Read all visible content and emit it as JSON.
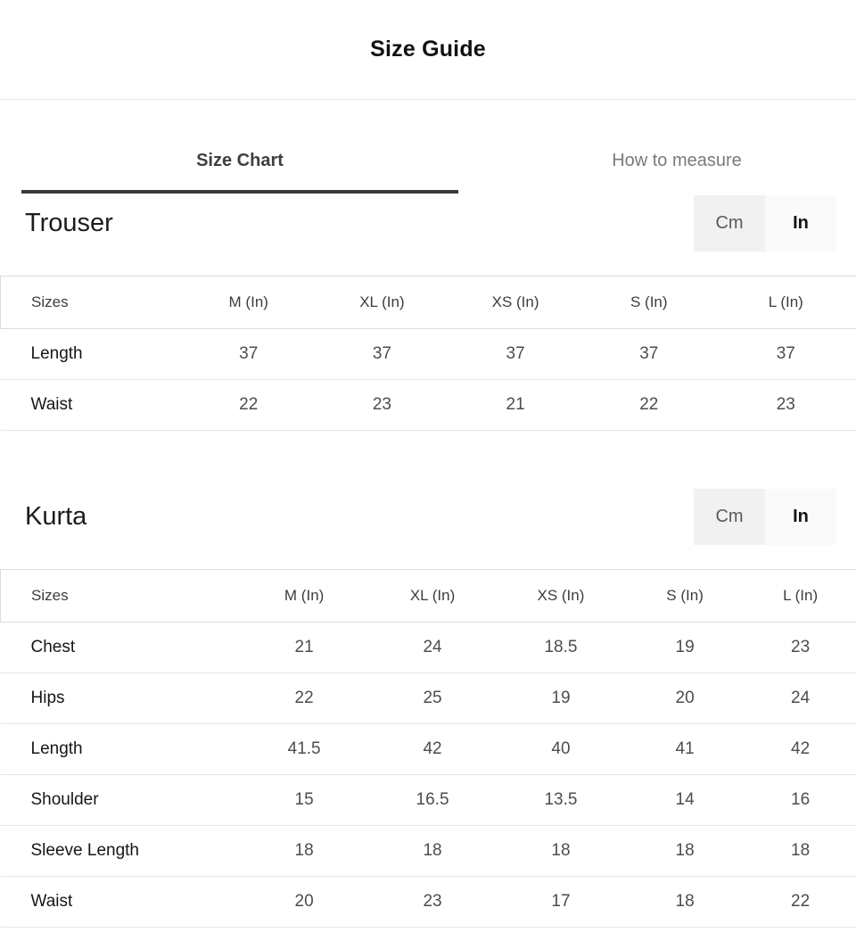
{
  "page": {
    "title": "Size Guide"
  },
  "tabs": {
    "size_chart": "Size Chart",
    "how_to_measure": "How to measure",
    "active_tab": "size_chart"
  },
  "unit_toggle": {
    "cm": "Cm",
    "in": "In"
  },
  "sections": [
    {
      "heading": "Trouser",
      "selected_unit": "in",
      "columns": [
        "Sizes",
        "M (In)",
        "XL (In)",
        "XS (In)",
        "S (In)",
        "L (In)"
      ],
      "rows": [
        {
          "label": "Length",
          "values": [
            "37",
            "37",
            "37",
            "37",
            "37"
          ]
        },
        {
          "label": "Waist",
          "values": [
            "22",
            "23",
            "21",
            "22",
            "23"
          ]
        }
      ]
    },
    {
      "heading": "Kurta",
      "selected_unit": "in",
      "columns": [
        "Sizes",
        "M (In)",
        "XL (In)",
        "XS (In)",
        "S (In)",
        "L (In)"
      ],
      "rows": [
        {
          "label": "Chest",
          "values": [
            "21",
            "24",
            "18.5",
            "19",
            "23"
          ]
        },
        {
          "label": "Hips",
          "values": [
            "22",
            "25",
            "19",
            "20",
            "24"
          ]
        },
        {
          "label": "Length",
          "values": [
            "41.5",
            "42",
            "40",
            "41",
            "42"
          ]
        },
        {
          "label": "Shoulder",
          "values": [
            "15",
            "16.5",
            "13.5",
            "14",
            "16"
          ]
        },
        {
          "label": "Sleeve Length",
          "values": [
            "18",
            "18",
            "18",
            "18",
            "18"
          ]
        },
        {
          "label": "Waist",
          "values": [
            "20",
            "23",
            "17",
            "18",
            "22"
          ]
        }
      ]
    }
  ],
  "colors": {
    "tab_active": "#3f3f3f",
    "tab_inactive": "#7a7a7a",
    "tab_underline": "#3a3a3a",
    "heading_text": "#1c1c1c",
    "label_text": "#161616",
    "value_text": "#4d4d4d",
    "header_text": "#3d3d3d",
    "border": "#dcdcdc",
    "row_border": "#e5e5e5",
    "divider": "#e9e9e9",
    "toggle_cm_bg": "#f1f1f1",
    "toggle_cm_text": "#5a5a5a",
    "toggle_in_bg": "#fafafa",
    "toggle_in_text": "#141414"
  }
}
